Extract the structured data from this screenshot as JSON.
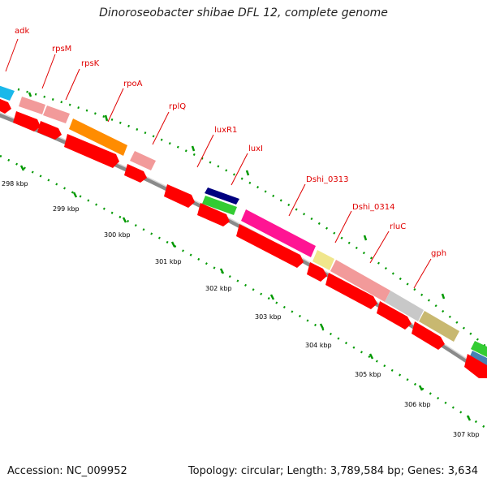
{
  "title": "Dinoroseobacter shibae DFL 12, complete genome",
  "footer": {
    "accession": "Accession: NC_009952",
    "summary": "Topology: circular; Length: 3,789,584 bp; Genes: 3,634"
  },
  "colors": {
    "cds": "#ff0000",
    "backbone": "#7f7f7f",
    "tick": "#009900",
    "label": "#e00000"
  },
  "gene_labels": [
    "adk",
    "rpsM",
    "rpsK",
    "rpoA",
    "rplQ",
    "luxR1",
    "luxI",
    "Dshi_0313",
    "Dshi_0314",
    "rluC",
    "gph"
  ],
  "kbp_labels": [
    "298 kbp",
    "299 kbp",
    "300 kbp",
    "301 kbp",
    "302 kbp",
    "303 kbp",
    "304 kbp",
    "305 kbp",
    "306 kbp",
    "307 kbp"
  ]
}
